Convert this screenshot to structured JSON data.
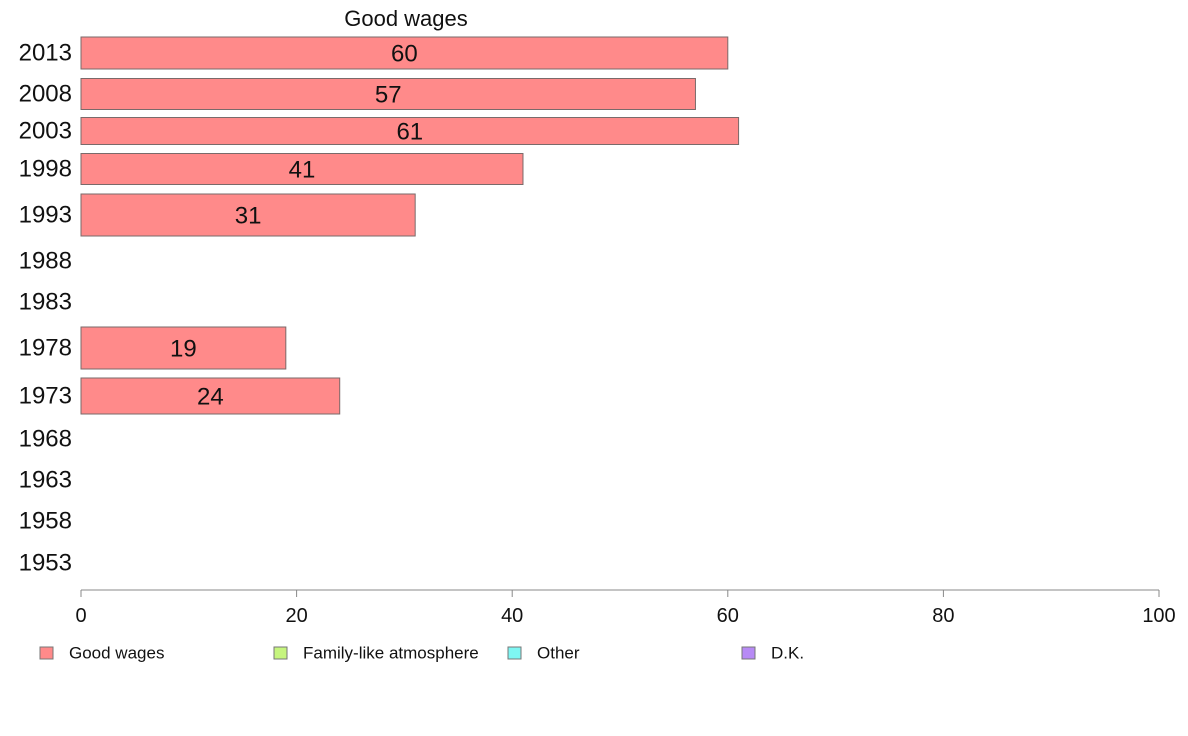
{
  "chart_data": {
    "type": "bar",
    "orientation": "horizontal",
    "title": "Good wages",
    "categories": [
      "2013",
      "2008",
      "2003",
      "1998",
      "1993",
      "1988",
      "1983",
      "1978",
      "1973",
      "1968",
      "1963",
      "1958",
      "1953"
    ],
    "series": [
      {
        "name": "Good wages",
        "color": "#ff8a8a",
        "values": [
          60,
          57,
          61,
          41,
          31,
          null,
          null,
          19,
          24,
          null,
          null,
          null,
          null
        ],
        "labels": [
          "60",
          "57",
          "61",
          "41",
          "31",
          "",
          "",
          "19",
          "24",
          "",
          "",
          "",
          ""
        ]
      }
    ],
    "xlim": [
      0,
      100
    ],
    "xticks": [
      "0",
      "20",
      "40",
      "60",
      "80",
      "100"
    ],
    "xlabel": "",
    "ylabel": "",
    "grid": false,
    "legend_position": "bottom",
    "legend": [
      {
        "name": "Good wages",
        "color": "#ff8a8a"
      },
      {
        "name": "Family-like atmosphere",
        "color": "#c6f57e"
      },
      {
        "name": "Other",
        "color": "#7ef6f3"
      },
      {
        "name": "D.K.",
        "color": "#b78af5"
      }
    ]
  }
}
